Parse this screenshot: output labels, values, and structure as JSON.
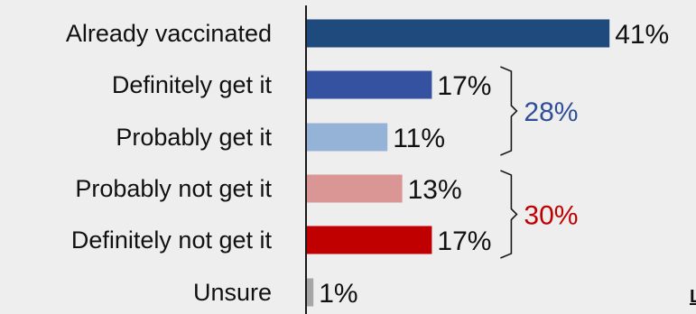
{
  "chart_data": {
    "type": "bar",
    "orientation": "horizontal",
    "title": "",
    "xlabel": "",
    "ylabel": "",
    "categories": [
      "Already vaccinated",
      "Definitely get it",
      "Probably get it",
      "Probably not get it",
      "Definitely not get it",
      "Unsure"
    ],
    "values": [
      41,
      17,
      11,
      13,
      17,
      1
    ],
    "value_labels": [
      "41%",
      "17%",
      "11%",
      "13%",
      "17%",
      "1%"
    ],
    "bar_colors": [
      "#1f4a7d",
      "#34529f",
      "#95b3d7",
      "#da9694",
      "#c00000",
      "#a6a6a6"
    ],
    "groups": [
      {
        "label": "28%",
        "members": [
          1,
          2
        ],
        "color": "#2e4f97"
      },
      {
        "label": "30%",
        "members": [
          3,
          4
        ],
        "color": "#c00000"
      }
    ],
    "clipped_text": "L",
    "grid": false,
    "legend": "none"
  }
}
